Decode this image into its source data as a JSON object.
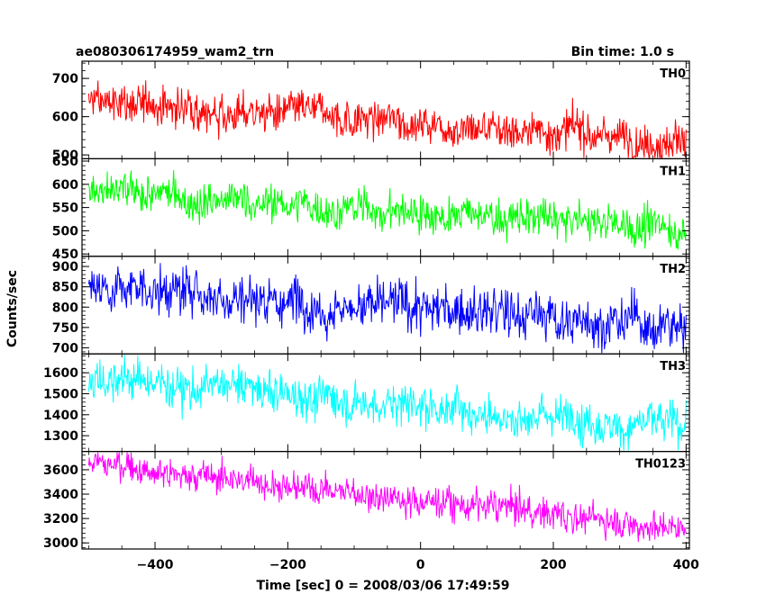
{
  "chart_data": {
    "type": "line",
    "title": "ae080306174959_wam2_trn",
    "subtitle": "Bin time: 1.0 s",
    "xlabel": "Time [sec] 0 = 2008/03/06 17:49:59",
    "ylabel": "Counts/sec",
    "xlim": [
      -510,
      405
    ],
    "x_ticks": [
      -400,
      -200,
      0,
      200,
      400
    ],
    "x_tick_labels": [
      "−400",
      "−200",
      "0",
      "200",
      "400"
    ],
    "x_range": [
      -500,
      400
    ],
    "bin_time": 1.0,
    "grid": false,
    "legend": "none",
    "series": [
      {
        "name": "TH0",
        "color": "#ff0000",
        "ylim": [
          490,
          745
        ],
        "ticks": [
          500,
          600,
          700
        ],
        "tick_labels": [
          "500",
          "600",
          "700"
        ],
        "start": 640,
        "end": 540,
        "noise": 25
      },
      {
        "name": "TH1",
        "color": "#00ff00",
        "ylim": [
          445,
          655
        ],
        "ticks": [
          450,
          500,
          550,
          600,
          650
        ],
        "tick_labels": [
          "450",
          "500",
          "550",
          "600",
          "650"
        ],
        "start": 580,
        "end": 505,
        "noise": 20
      },
      {
        "name": "TH2",
        "color": "#0000ff",
        "ylim": [
          685,
          925
        ],
        "ticks": [
          700,
          750,
          800,
          850,
          900
        ],
        "tick_labels": [
          "700",
          "750",
          "800",
          "850",
          "900"
        ],
        "start": 855,
        "end": 750,
        "noise": 30
      },
      {
        "name": "TH3",
        "color": "#00ffff",
        "ylim": [
          1225,
          1690
        ],
        "ticks": [
          1300,
          1400,
          1500,
          1600
        ],
        "tick_labels": [
          "1300",
          "1400",
          "1500",
          "1600"
        ],
        "start": 1580,
        "end": 1340,
        "noise": 50
      },
      {
        "name": "TH0123",
        "color": "#ff00ff",
        "ylim": [
          2950,
          3750
        ],
        "ticks": [
          3000,
          3200,
          3400,
          3600
        ],
        "tick_labels": [
          "3000",
          "3200",
          "3400",
          "3600"
        ],
        "start": 3660,
        "end": 3120,
        "noise": 65
      }
    ]
  }
}
